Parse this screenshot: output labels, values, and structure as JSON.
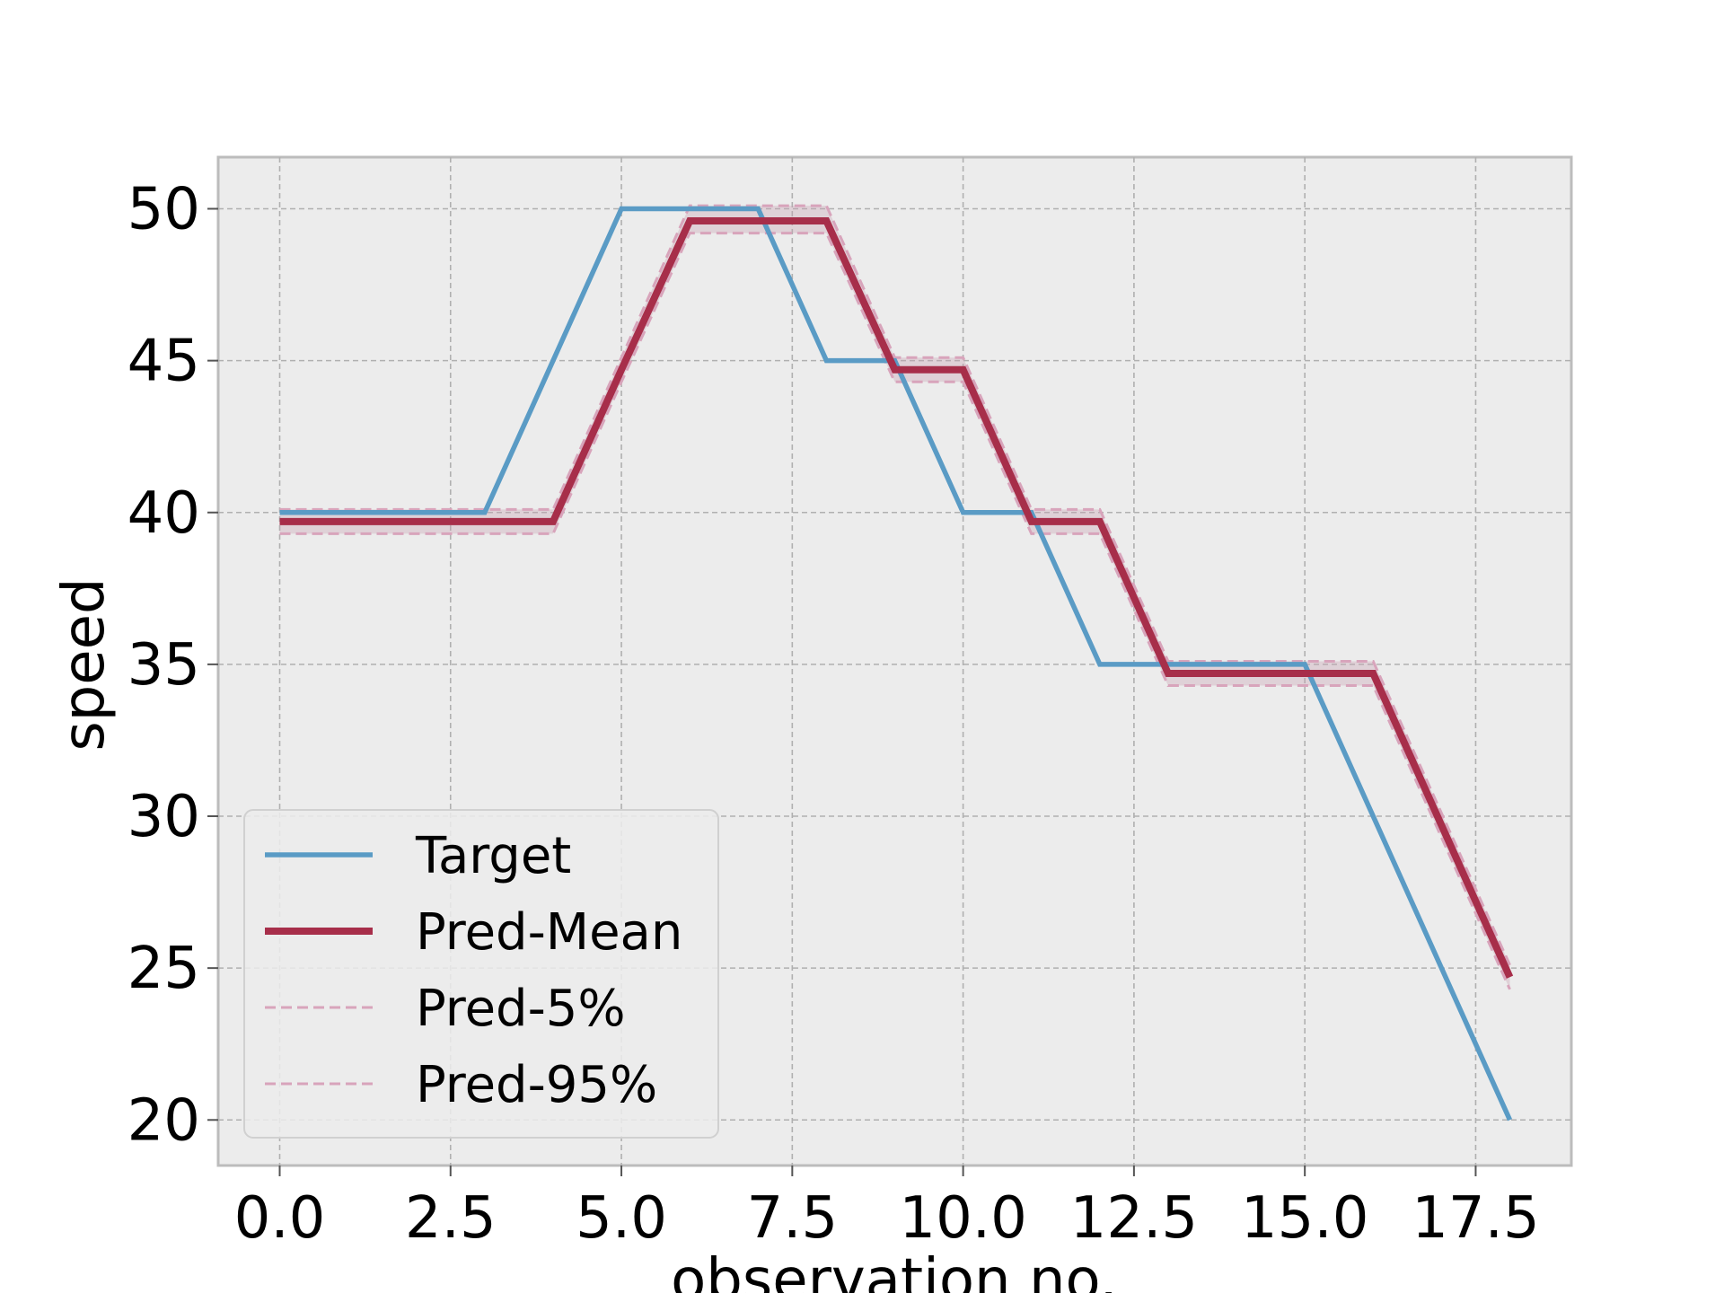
{
  "chart_data": {
    "type": "line",
    "title": "",
    "xlabel": "observation no.",
    "ylabel": "speed",
    "xlim": [
      -0.9,
      18.9
    ],
    "ylim": [
      18.5,
      51.7
    ],
    "xticks": [
      0.0,
      2.5,
      5.0,
      7.5,
      10.0,
      12.5,
      15.0,
      17.5
    ],
    "xtick_labels": [
      "0.0",
      "2.5",
      "5.0",
      "7.5",
      "10.0",
      "12.5",
      "15.0",
      "17.5"
    ],
    "yticks": [
      20,
      25,
      30,
      35,
      40,
      45,
      50
    ],
    "ytick_labels": [
      "20",
      "25",
      "30",
      "35",
      "40",
      "45",
      "50"
    ],
    "grid": true,
    "legend_position": "lower-left",
    "x": [
      0,
      1,
      2,
      3,
      4,
      5,
      6,
      7,
      8,
      9,
      10,
      11,
      12,
      13,
      14,
      15,
      16,
      17,
      18
    ],
    "series": [
      {
        "name": "Target",
        "color": "#5a9bc5",
        "style": "solid",
        "values": [
          40,
          40,
          40,
          40,
          45,
          50,
          50,
          50,
          45,
          45,
          40,
          40,
          35,
          35,
          35,
          35,
          30,
          25,
          20
        ]
      },
      {
        "name": "Pred-Mean",
        "color": "#a72e4a",
        "style": "solid",
        "values": [
          39.7,
          39.7,
          39.7,
          39.7,
          39.7,
          44.7,
          49.6,
          49.6,
          49.6,
          44.7,
          44.7,
          39.7,
          39.7,
          34.7,
          34.7,
          34.7,
          34.7,
          29.7,
          24.7
        ]
      },
      {
        "name": "Pred-5%",
        "color": "#d8a4bb",
        "style": "dashed",
        "values": [
          39.3,
          39.3,
          39.3,
          39.3,
          39.3,
          44.3,
          49.2,
          49.2,
          49.2,
          44.3,
          44.3,
          39.3,
          39.3,
          34.3,
          34.3,
          34.3,
          34.3,
          29.3,
          24.3
        ]
      },
      {
        "name": "Pred-95%",
        "color": "#d8a4bb",
        "style": "dashed",
        "values": [
          40.1,
          40.1,
          40.1,
          40.1,
          40.1,
          45.1,
          50.1,
          50.1,
          50.1,
          45.1,
          45.1,
          40.1,
          40.1,
          35.1,
          35.1,
          35.1,
          35.1,
          30.1,
          25.1
        ]
      }
    ]
  }
}
